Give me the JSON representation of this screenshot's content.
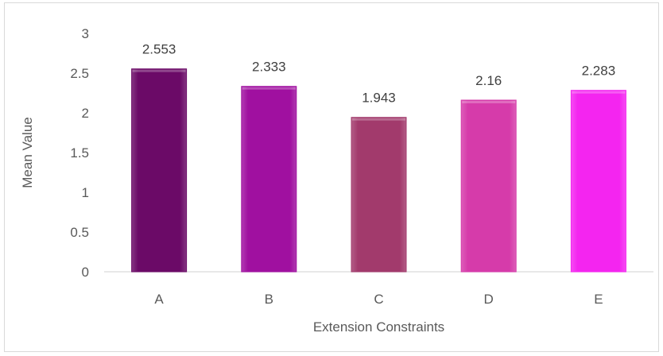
{
  "chart_data": {
    "type": "bar",
    "categories": [
      "A",
      "B",
      "C",
      "D",
      "E"
    ],
    "values": [
      2.553,
      2.333,
      1.943,
      2.16,
      2.283
    ],
    "data_labels": [
      "2.553",
      "2.333",
      "1.943",
      "2.16",
      "2.283"
    ],
    "yticks": [
      "0",
      "0.5",
      "1",
      "1.5",
      "2",
      "2.5",
      "3"
    ],
    "ytick_values": [
      0,
      0.5,
      1,
      1.5,
      2,
      2.5,
      3
    ],
    "xlabel": "Extension Constraints",
    "ylabel": "Mean Value",
    "ylim": [
      0,
      3
    ],
    "grid": false,
    "legend": "none",
    "bar_colors": [
      "#6B0A67",
      "#A010A0",
      "#A23A6C",
      "#D63BAA",
      "#F425F0"
    ]
  }
}
